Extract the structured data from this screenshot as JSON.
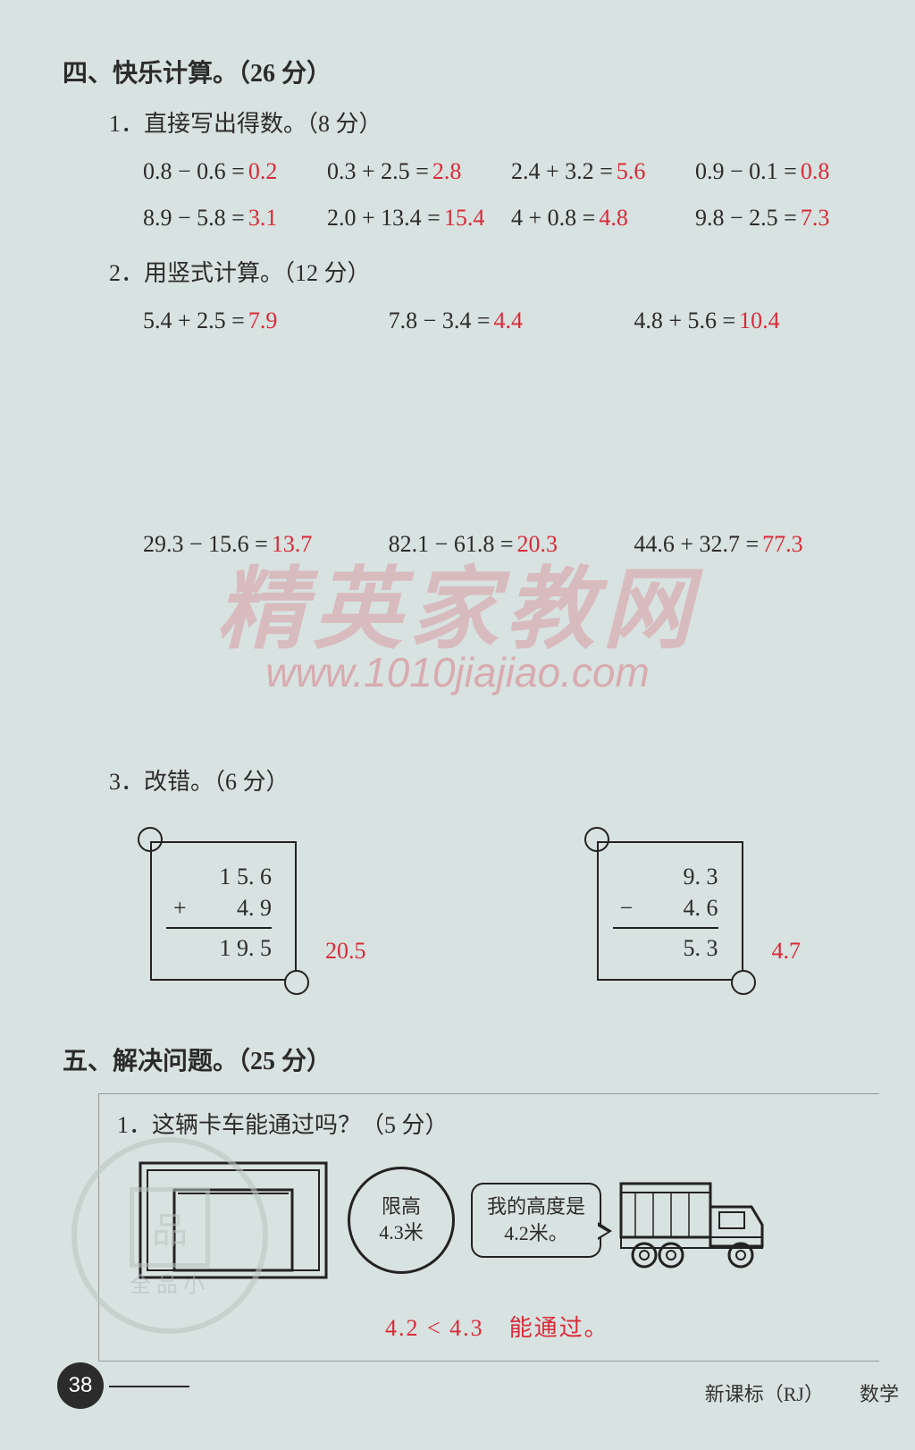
{
  "section4": {
    "heading": "四、快乐计算。（26 分）",
    "q1": {
      "title": "1．直接写出得数。（8 分）",
      "rows": [
        [
          {
            "expr": "0.8 − 0.6 =",
            "ans": "0.2"
          },
          {
            "expr": "0.3 + 2.5 =",
            "ans": "2.8"
          },
          {
            "expr": "2.4 + 3.2 =",
            "ans": "5.6"
          },
          {
            "expr": "0.9 − 0.1 =",
            "ans": "0.8"
          }
        ],
        [
          {
            "expr": "8.9 − 5.8 =",
            "ans": "3.1"
          },
          {
            "expr": "2.0 + 13.4 =",
            "ans": "15.4"
          },
          {
            "expr": "4 + 0.8 =",
            "ans": "4.8"
          },
          {
            "expr": "9.8 − 2.5 =",
            "ans": "7.3"
          }
        ]
      ]
    },
    "q2": {
      "title": "2．用竖式计算。（12 分）",
      "rows": [
        [
          {
            "expr": "5.4 + 2.5 =",
            "ans": "7.9"
          },
          {
            "expr": "7.8 − 3.4 =",
            "ans": "4.4"
          },
          {
            "expr": "4.8 + 5.6 =",
            "ans": "10.4"
          }
        ],
        [
          {
            "expr": "29.3 − 15.6 =",
            "ans": "13.7"
          },
          {
            "expr": "82.1 − 61.8 =",
            "ans": "20.3"
          },
          {
            "expr": "44.6 + 32.7 =",
            "ans": "77.3"
          }
        ]
      ]
    },
    "q3": {
      "title": "3．改错。（6 分）",
      "scrolls": [
        {
          "l1": "1  5. 6",
          "op": "+",
          "l2": "4. 9",
          "res": "1  9. 5",
          "correct": "20.5"
        },
        {
          "l1": "9. 3",
          "op": "−",
          "l2": "4. 6",
          "res": "5. 3",
          "correct": "4.7"
        }
      ]
    }
  },
  "section5": {
    "heading": "五、解决问题。（25 分）",
    "q1": {
      "title": "1．这辆卡车能通过吗？（5 分）",
      "sign_l1": "限高",
      "sign_l2": "4.3米",
      "bubble_l1": "我的高度是",
      "bubble_l2": "4.2米。",
      "answer": "4.2 < 4.3　能通过。"
    }
  },
  "watermark": {
    "big": "精英家教网",
    "url": "www.1010jiajiao.com"
  },
  "seal": {
    "ring": "全品小",
    "inner": "品"
  },
  "page": {
    "num": "38",
    "footer1": "新课标（RJ）",
    "footer2": "数学"
  },
  "colors": {
    "answer": "#d92a3a",
    "text": "#2b2b2b",
    "bg": "#d8e2e0"
  }
}
